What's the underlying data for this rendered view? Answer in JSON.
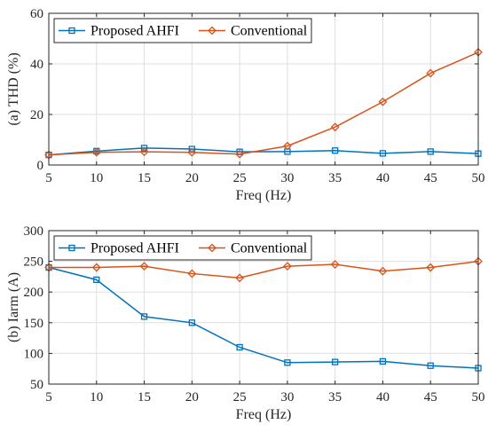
{
  "chart_data": [
    {
      "type": "line",
      "ylabel": "(a) THD (%)",
      "xlabel": "Freq (Hz)",
      "x": [
        5,
        10,
        15,
        20,
        25,
        30,
        35,
        40,
        45,
        50
      ],
      "xlim": [
        5,
        50
      ],
      "ylim": [
        0,
        60
      ],
      "xticks": [
        "5",
        "10",
        "15",
        "20",
        "25",
        "30",
        "35",
        "40",
        "45",
        "50"
      ],
      "yticks": [
        "0",
        "20",
        "40",
        "60"
      ],
      "grid": true,
      "legend_position": "top-left",
      "series": [
        {
          "name": "Proposed AHFI",
          "color": "#0072bd",
          "marker": "square",
          "values": [
            4.0,
            5.5,
            6.7,
            6.3,
            5.2,
            5.3,
            5.7,
            4.6,
            5.3,
            4.5
          ]
        },
        {
          "name": "Conventional",
          "color": "#d95319",
          "marker": "diamond",
          "values": [
            4.0,
            5.0,
            5.2,
            5.0,
            4.3,
            7.5,
            15.0,
            25.0,
            36.3,
            44.6
          ]
        }
      ]
    },
    {
      "type": "line",
      "ylabel": "(b) Iarm (A)",
      "xlabel": "Freq (Hz)",
      "x": [
        5,
        10,
        15,
        20,
        25,
        30,
        35,
        40,
        45,
        50
      ],
      "xlim": [
        5,
        50
      ],
      "ylim": [
        50,
        300
      ],
      "xticks": [
        "5",
        "10",
        "15",
        "20",
        "25",
        "30",
        "35",
        "40",
        "45",
        "50"
      ],
      "yticks": [
        "50",
        "100",
        "150",
        "200",
        "250",
        "300"
      ],
      "grid": true,
      "legend_position": "top-left",
      "series": [
        {
          "name": "Proposed AHFI",
          "color": "#0072bd",
          "marker": "square",
          "values": [
            240,
            220,
            160,
            150,
            110,
            85,
            86,
            87,
            80,
            76
          ]
        },
        {
          "name": "Conventional",
          "color": "#d95319",
          "marker": "diamond",
          "values": [
            240,
            240,
            242,
            230,
            223,
            242,
            245,
            234,
            240,
            250
          ]
        }
      ]
    }
  ]
}
